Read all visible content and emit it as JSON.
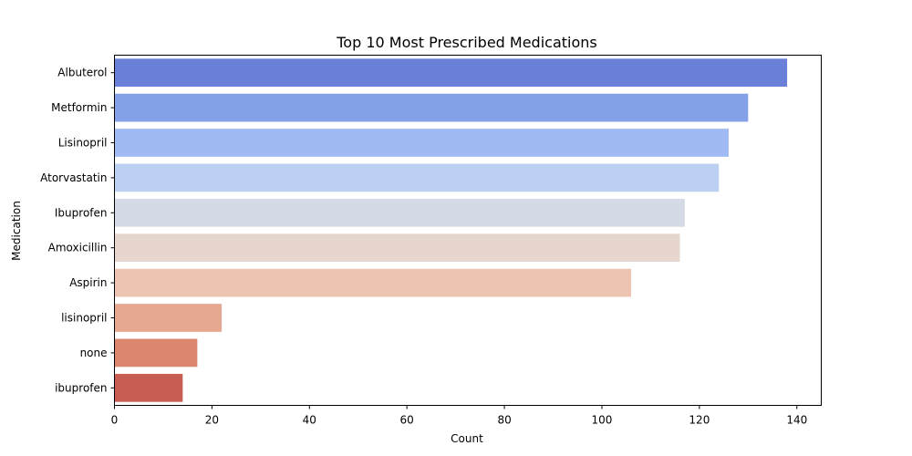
{
  "chart_data": {
    "type": "bar",
    "orientation": "horizontal",
    "title": "Top 10 Most Prescribed Medications",
    "xlabel": "Count",
    "ylabel": "Medication",
    "xlim": [
      0,
      145
    ],
    "xticks": [
      0,
      20,
      40,
      60,
      80,
      100,
      120,
      140
    ],
    "grid": false,
    "legend": "none",
    "categories": [
      "Albuterol",
      "Metformin",
      "Lisinopril",
      "Atorvastatin",
      "Ibuprofen",
      "Amoxicillin",
      "Aspirin",
      "lisinopril",
      "none",
      "ibuprofen"
    ],
    "values": [
      138,
      130,
      126,
      124,
      117,
      116,
      106,
      22,
      17,
      14
    ],
    "colors": [
      "#6a80d8",
      "#84a1e7",
      "#a0baf4",
      "#bcd0f2",
      "#d5dbe6",
      "#e6d6cd",
      "#edc4b1",
      "#e7a891",
      "#dc8670",
      "#c75d53"
    ]
  }
}
